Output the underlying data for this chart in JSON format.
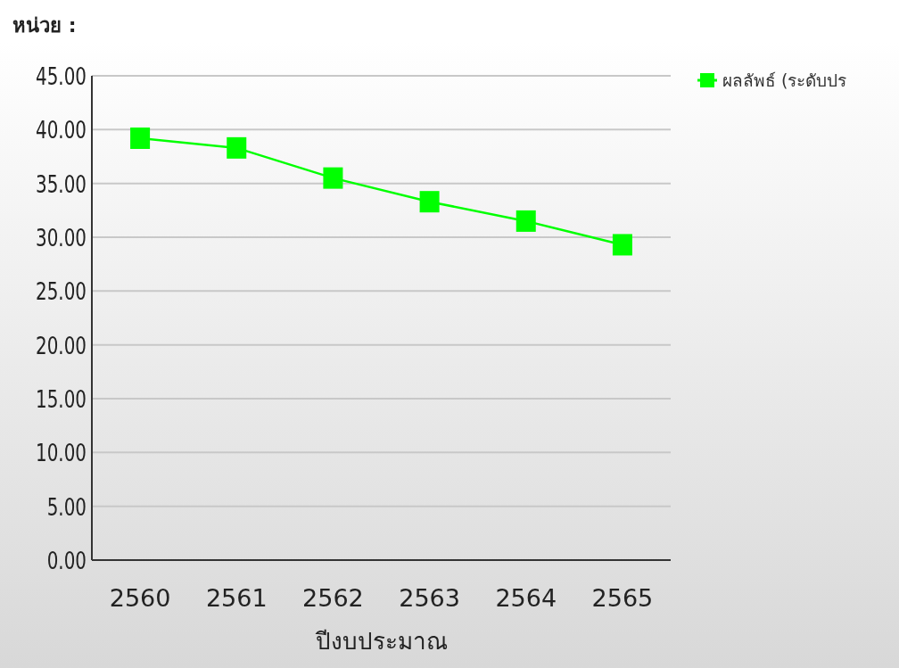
{
  "chart_data": {
    "type": "line",
    "ylabel": "หน่วย :",
    "xlabel": "ปีงบประมาณ",
    "categories": [
      "2560",
      "2561",
      "2562",
      "2563",
      "2564",
      "2565"
    ],
    "series": [
      {
        "name": "ผลลัพธ์ (ระดับปร",
        "color": "#00ff00",
        "values": [
          39.2,
          38.3,
          35.5,
          33.3,
          31.5,
          29.3
        ]
      }
    ],
    "ylim": [
      0,
      45
    ],
    "yticks": [
      {
        "value": 0,
        "label": "0.00"
      },
      {
        "value": 5,
        "label": "5.00"
      },
      {
        "value": 10,
        "label": "10.00"
      },
      {
        "value": 15,
        "label": "15.00"
      },
      {
        "value": 20,
        "label": "20.00"
      },
      {
        "value": 25,
        "label": "25.00"
      },
      {
        "value": 30,
        "label": "30.00"
      },
      {
        "value": 35,
        "label": "35.00"
      },
      {
        "value": 40,
        "label": "40.00"
      },
      {
        "value": 45,
        "label": "45.00"
      }
    ],
    "grid": "y",
    "legend": "top right",
    "marker": "square",
    "line_style": "solid"
  }
}
